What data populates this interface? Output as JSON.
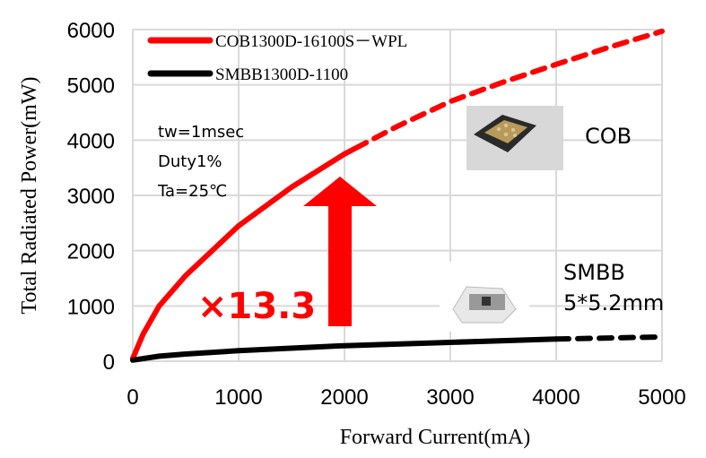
{
  "chart_data": {
    "type": "line",
    "title": "",
    "xlabel": "Forward Current(mA)",
    "ylabel": "Total Radiated Power(mW)",
    "xlim": [
      0,
      5000
    ],
    "ylim": [
      0,
      6000
    ],
    "xticks": [
      0,
      1000,
      2000,
      3000,
      4000,
      5000
    ],
    "yticks": [
      0,
      1000,
      2000,
      3000,
      4000,
      5000,
      6000
    ],
    "grid": true,
    "legend_placement": "top-left",
    "series": [
      {
        "name": "COB1300D-16100S－WPL",
        "color": "#ff0000",
        "solid_until": 2100,
        "x": [
          0,
          100,
          250,
          500,
          1000,
          1500,
          2000,
          2100,
          2500,
          3000,
          3500,
          4000,
          4500,
          5000
        ],
        "y": [
          50,
          500,
          1000,
          1550,
          2450,
          3150,
          3750,
          3850,
          4250,
          4700,
          5050,
          5370,
          5680,
          5970
        ]
      },
      {
        "name": "SMBB1300D-1100",
        "color": "#000000",
        "solid_until": 4000,
        "x": [
          0,
          250,
          500,
          1000,
          2000,
          3000,
          4000,
          4500,
          5000
        ],
        "y": [
          20,
          90,
          130,
          190,
          280,
          340,
          400,
          420,
          440
        ]
      }
    ],
    "annotations": {
      "conditions": [
        "tw=1msec",
        "Duty1%",
        "Ta=25℃"
      ],
      "multiplier": "×13.3",
      "cob_label": "COB",
      "smbb_label": "SMBB",
      "smbb_size": "5*5.2mm"
    }
  }
}
